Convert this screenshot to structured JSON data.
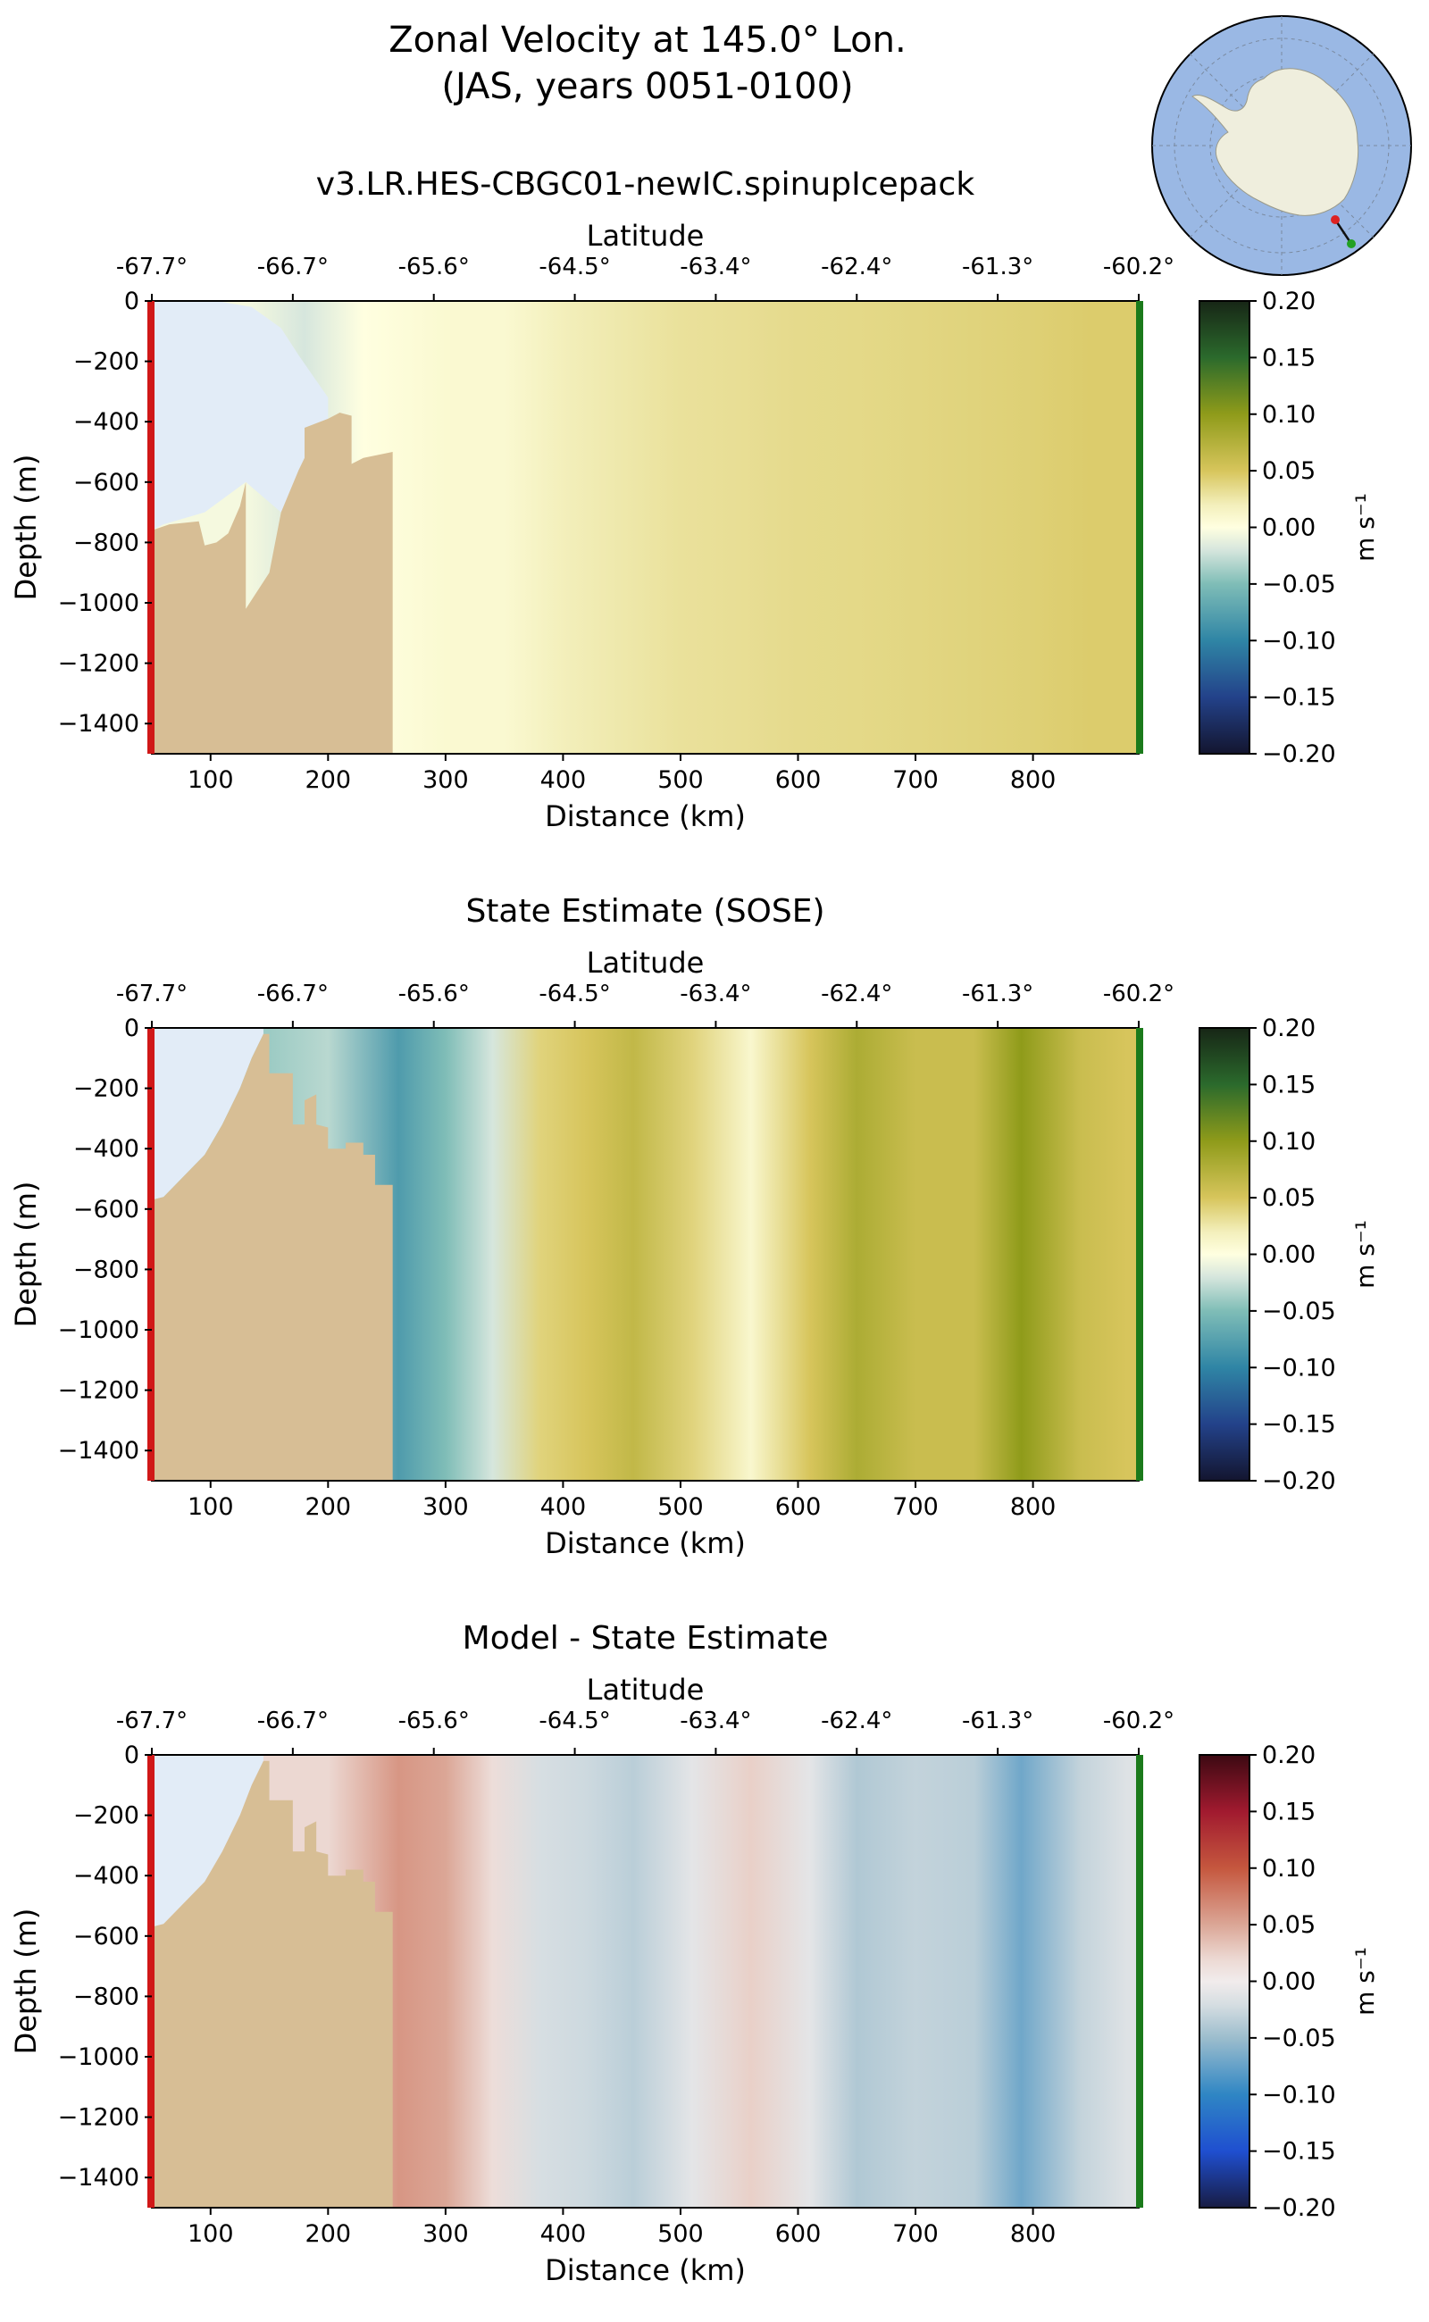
{
  "figure": {
    "title_line1": "Zonal Velocity at 145.0° Lon.",
    "title_line2": "(JAS, years 0051-0100)",
    "map_inset": {
      "ocean_color": "#9ab8e4",
      "land_color": "#efeedd",
      "section_start_color": "#dd2222",
      "section_end_color": "#22a022"
    }
  },
  "chart_data": [
    {
      "type": "heatmap",
      "title": "v3.LR.HES-CBGC01-newIC.spinupIcepack",
      "xlabel": "Distance (km)",
      "ylabel": "Depth (m)",
      "top_axis_label": "Latitude",
      "x_ticks": [
        "100",
        "200",
        "300",
        "400",
        "500",
        "600",
        "700",
        "800"
      ],
      "y_ticks": [
        "0",
        "−200",
        "−400",
        "−600",
        "−800",
        "−1000",
        "−1200",
        "−1400"
      ],
      "lat_ticks": [
        "-67.7°",
        "-66.7°",
        "-65.6°",
        "-64.5°",
        "-63.4°",
        "-62.4°",
        "-61.3°",
        "-60.2°"
      ],
      "xlim": [
        50,
        890
      ],
      "ylim": [
        -1500,
        0
      ],
      "colorbar": {
        "label": "m s⁻¹",
        "ticks": [
          "0.20",
          "0.15",
          "0.10",
          "0.05",
          "0.00",
          "−0.05",
          "−0.10",
          "−0.15",
          "−0.20"
        ],
        "range": [
          -0.2,
          0.2
        ],
        "colormap": "delta"
      },
      "columns": [
        {
          "x": 130,
          "u": -0.005
        },
        {
          "x": 180,
          "u": -0.02
        },
        {
          "x": 230,
          "u": 0.0
        },
        {
          "x": 300,
          "u": 0.008
        },
        {
          "x": 350,
          "u": 0.008
        },
        {
          "x": 400,
          "u": 0.02
        },
        {
          "x": 450,
          "u": 0.025
        },
        {
          "x": 500,
          "u": 0.03
        },
        {
          "x": 550,
          "u": 0.032
        },
        {
          "x": 600,
          "u": 0.035
        },
        {
          "x": 650,
          "u": 0.036
        },
        {
          "x": 700,
          "u": 0.038
        },
        {
          "x": 750,
          "u": 0.04
        },
        {
          "x": 800,
          "u": 0.042
        },
        {
          "x": 850,
          "u": 0.045
        }
      ]
    },
    {
      "type": "heatmap",
      "title": "State Estimate (SOSE)",
      "xlabel": "Distance (km)",
      "ylabel": "Depth (m)",
      "top_axis_label": "Latitude",
      "x_ticks": [
        "100",
        "200",
        "300",
        "400",
        "500",
        "600",
        "700",
        "800"
      ],
      "y_ticks": [
        "0",
        "−200",
        "−400",
        "−600",
        "−800",
        "−1000",
        "−1200",
        "−1400"
      ],
      "lat_ticks": [
        "-67.7°",
        "-66.7°",
        "-65.6°",
        "-64.5°",
        "-63.4°",
        "-62.4°",
        "-61.3°",
        "-60.2°"
      ],
      "xlim": [
        50,
        890
      ],
      "ylim": [
        -1500,
        0
      ],
      "colorbar": {
        "label": "m s⁻¹",
        "ticks": [
          "0.20",
          "0.15",
          "0.10",
          "0.05",
          "0.00",
          "−0.05",
          "−0.10",
          "−0.15",
          "−0.20"
        ],
        "range": [
          -0.2,
          0.2
        ],
        "colormap": "delta"
      },
      "columns": [
        {
          "x": 150,
          "u": -0.04
        },
        {
          "x": 200,
          "u": -0.03
        },
        {
          "x": 260,
          "u": -0.08
        },
        {
          "x": 300,
          "u": -0.05
        },
        {
          "x": 340,
          "u": -0.02
        },
        {
          "x": 380,
          "u": 0.04
        },
        {
          "x": 420,
          "u": 0.05
        },
        {
          "x": 460,
          "u": 0.065
        },
        {
          "x": 510,
          "u": 0.04
        },
        {
          "x": 560,
          "u": 0.01
        },
        {
          "x": 610,
          "u": 0.05
        },
        {
          "x": 650,
          "u": 0.08
        },
        {
          "x": 700,
          "u": 0.06
        },
        {
          "x": 750,
          "u": 0.06
        },
        {
          "x": 790,
          "u": 0.1
        },
        {
          "x": 840,
          "u": 0.06
        },
        {
          "x": 880,
          "u": 0.05
        }
      ]
    },
    {
      "type": "heatmap",
      "title": "Model - State Estimate",
      "xlabel": "Distance (km)",
      "ylabel": "Depth (m)",
      "top_axis_label": "Latitude",
      "x_ticks": [
        "100",
        "200",
        "300",
        "400",
        "500",
        "600",
        "700",
        "800"
      ],
      "y_ticks": [
        "0",
        "−200",
        "−400",
        "−600",
        "−800",
        "−1000",
        "−1200",
        "−1400"
      ],
      "lat_ticks": [
        "-67.7°",
        "-66.7°",
        "-65.6°",
        "-64.5°",
        "-63.4°",
        "-62.4°",
        "-61.3°",
        "-60.2°"
      ],
      "xlim": [
        50,
        890
      ],
      "ylim": [
        -1500,
        0
      ],
      "colorbar": {
        "label": "m s⁻¹",
        "ticks": [
          "0.20",
          "0.15",
          "0.10",
          "0.05",
          "0.00",
          "−0.05",
          "−0.10",
          "−0.15",
          "−0.20"
        ],
        "range": [
          -0.2,
          0.2
        ],
        "colormap": "balance"
      },
      "columns": [
        {
          "x": 150,
          "u": 0.02
        },
        {
          "x": 200,
          "u": 0.02
        },
        {
          "x": 260,
          "u": 0.06
        },
        {
          "x": 300,
          "u": 0.05
        },
        {
          "x": 340,
          "u": 0.015
        },
        {
          "x": 380,
          "u": -0.02
        },
        {
          "x": 420,
          "u": -0.025
        },
        {
          "x": 460,
          "u": -0.035
        },
        {
          "x": 510,
          "u": -0.01
        },
        {
          "x": 560,
          "u": 0.025
        },
        {
          "x": 610,
          "u": -0.01
        },
        {
          "x": 650,
          "u": -0.04
        },
        {
          "x": 700,
          "u": -0.03
        },
        {
          "x": 750,
          "u": -0.035
        },
        {
          "x": 790,
          "u": -0.07
        },
        {
          "x": 840,
          "u": -0.03
        },
        {
          "x": 880,
          "u": -0.015
        }
      ]
    }
  ]
}
